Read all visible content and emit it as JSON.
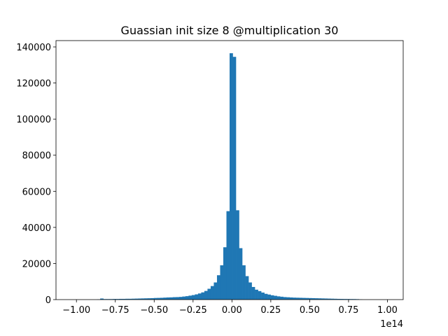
{
  "chart_data": {
    "type": "histogram",
    "title": "Guassian init size 8 @multiplication 30",
    "x_offset_label": "1e14",
    "color": "#1f77b4",
    "bins": [
      -1.03,
      -1.0097,
      -0.9894,
      -0.9691,
      -0.9488,
      -0.9285,
      -0.9082,
      -0.8879,
      -0.8676,
      -0.8473,
      -0.827,
      -0.8067,
      -0.7864,
      -0.7661,
      -0.7458,
      -0.7255,
      -0.7052,
      -0.6849,
      -0.6646,
      -0.6443,
      -0.624,
      -0.6037,
      -0.5834,
      -0.5631,
      -0.5428,
      -0.5225,
      -0.5022,
      -0.4819,
      -0.4616,
      -0.4413,
      -0.421,
      -0.4007,
      -0.3804,
      -0.3601,
      -0.3398,
      -0.3195,
      -0.2992,
      -0.2789,
      -0.2586,
      -0.2383,
      -0.218,
      -0.1977,
      -0.1774,
      -0.1571,
      -0.1368,
      -0.1165,
      -0.0962,
      -0.0759,
      -0.0556,
      -0.0353,
      -0.015,
      0.0053,
      0.0256,
      0.0459,
      0.0662,
      0.0865,
      0.1068,
      0.1271,
      0.1474,
      0.1677,
      0.188,
      0.2083,
      0.2286,
      0.2489,
      0.2692,
      0.2895,
      0.3098,
      0.3301,
      0.3504,
      0.3707,
      0.391,
      0.4113,
      0.4316,
      0.4519,
      0.4722,
      0.4925,
      0.5128,
      0.5331,
      0.5534,
      0.5737,
      0.594,
      0.6143,
      0.6346,
      0.6549,
      0.6752,
      0.6955,
      0.7158,
      0.7361,
      0.7564,
      0.7767,
      0.797,
      0.8173,
      0.8376,
      0.8579,
      0.8782,
      0.8985,
      0.9188,
      0.9391,
      0.9594,
      0.9797,
      1.0
    ],
    "values": [
      0,
      0,
      0,
      0,
      0,
      0,
      0,
      0,
      100,
      600,
      300,
      300,
      300,
      350,
      350,
      400,
      400,
      450,
      450,
      500,
      550,
      600,
      650,
      700,
      750,
      800,
      900,
      950,
      1000,
      1100,
      1200,
      1250,
      1350,
      1400,
      1500,
      1700,
      1900,
      2200,
      2500,
      2900,
      3400,
      4000,
      4800,
      6000,
      7500,
      9500,
      13500,
      19000,
      29000,
      49000,
      136500,
      134500,
      49500,
      28500,
      19000,
      13000,
      9500,
      7000,
      5500,
      4700,
      3900,
      3200,
      2800,
      2400,
      2100,
      1800,
      1600,
      1400,
      1300,
      1200,
      1100,
      1050,
      1000,
      950,
      900,
      850,
      800,
      750,
      700,
      650,
      600,
      550,
      500,
      450,
      400,
      380,
      350,
      330,
      310,
      300,
      250,
      100,
      0,
      0,
      0,
      0,
      0,
      0,
      0,
      0
    ],
    "xlim": [
      -1.1315,
      1.1015
    ],
    "xticks": [
      {
        "value": -1.0,
        "label": "−1.00"
      },
      {
        "value": -0.75,
        "label": "−0.75"
      },
      {
        "value": -0.5,
        "label": "−0.50"
      },
      {
        "value": -0.25,
        "label": "−0.25"
      },
      {
        "value": 0,
        "label": "0.00"
      },
      {
        "value": 0.25,
        "label": "0.25"
      },
      {
        "value": 0.5,
        "label": "0.50"
      },
      {
        "value": 0.75,
        "label": "0.75"
      },
      {
        "value": 1.0,
        "label": "1.00"
      }
    ],
    "ylim": [
      0,
      143500
    ],
    "yticks": [
      0,
      20000,
      40000,
      60000,
      80000,
      100000,
      120000,
      140000
    ]
  }
}
